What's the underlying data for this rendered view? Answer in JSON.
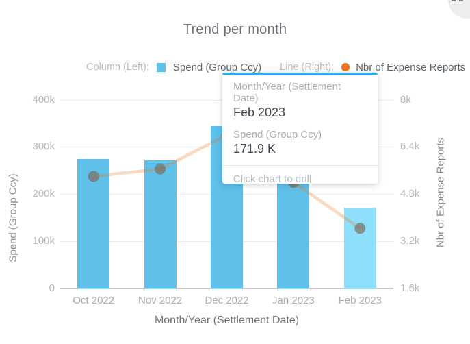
{
  "title": "Trend per month",
  "legend": {
    "column_label": "Column (Left):",
    "column_series": "Spend (Group Ccy)",
    "line_label": "Line (Right):",
    "line_series": "Nbr of Expense Reports"
  },
  "tooltip": {
    "field1_label": "Month/Year (Settlement Date)",
    "field1_value": "Feb 2023",
    "field2_label": "Spend (Group Ccy)",
    "field2_value": "171.9 K",
    "footer": "Click chart to drill"
  },
  "colors": {
    "bar": "#5fc0ea",
    "bar_highlight": "#8edffb",
    "legend_line_dot": "#e8731a",
    "trend_line": "rgba(232,121,31,0.28)",
    "trend_point": "rgba(125,110,95,0.7)",
    "tooltip_accent": "#35a9e1"
  },
  "chart_data": {
    "type": "combo-column-line",
    "title": "Trend per month",
    "categories": [
      "Oct 2022",
      "Nov 2022",
      "Dec 2022",
      "Jan 2023",
      "Feb 2023"
    ],
    "series": [
      {
        "name": "Spend (Group Ccy)",
        "type": "bar",
        "axis": "left",
        "values": [
          274000,
          271000,
          344000,
          280000,
          171900
        ]
      },
      {
        "name": "Nbr of Expense Reports",
        "type": "line",
        "axis": "right",
        "values": [
          5400,
          5650,
          6800,
          5200,
          3640
        ]
      }
    ],
    "left_axis": {
      "title": "Spend (Group Ccy)",
      "ticks": [
        "400k",
        "300k",
        "200k",
        "100k",
        "0"
      ],
      "tick_values": [
        400000,
        300000,
        200000,
        100000,
        0
      ],
      "min": 0,
      "max": 400000
    },
    "right_axis": {
      "title": "Nbr of Expense Reports",
      "ticks": [
        "8k",
        "6.4k",
        "4.8k",
        "3.2k",
        "1.6k"
      ],
      "tick_values": [
        8000,
        6400,
        4800,
        3200,
        1600
      ],
      "min": 1600,
      "max": 8000
    },
    "x_axis": {
      "title": "Month/Year (Settlement Date)"
    },
    "highlighted_category": "Feb 2023",
    "grid": "horizontal-only",
    "legend_position": "top"
  }
}
